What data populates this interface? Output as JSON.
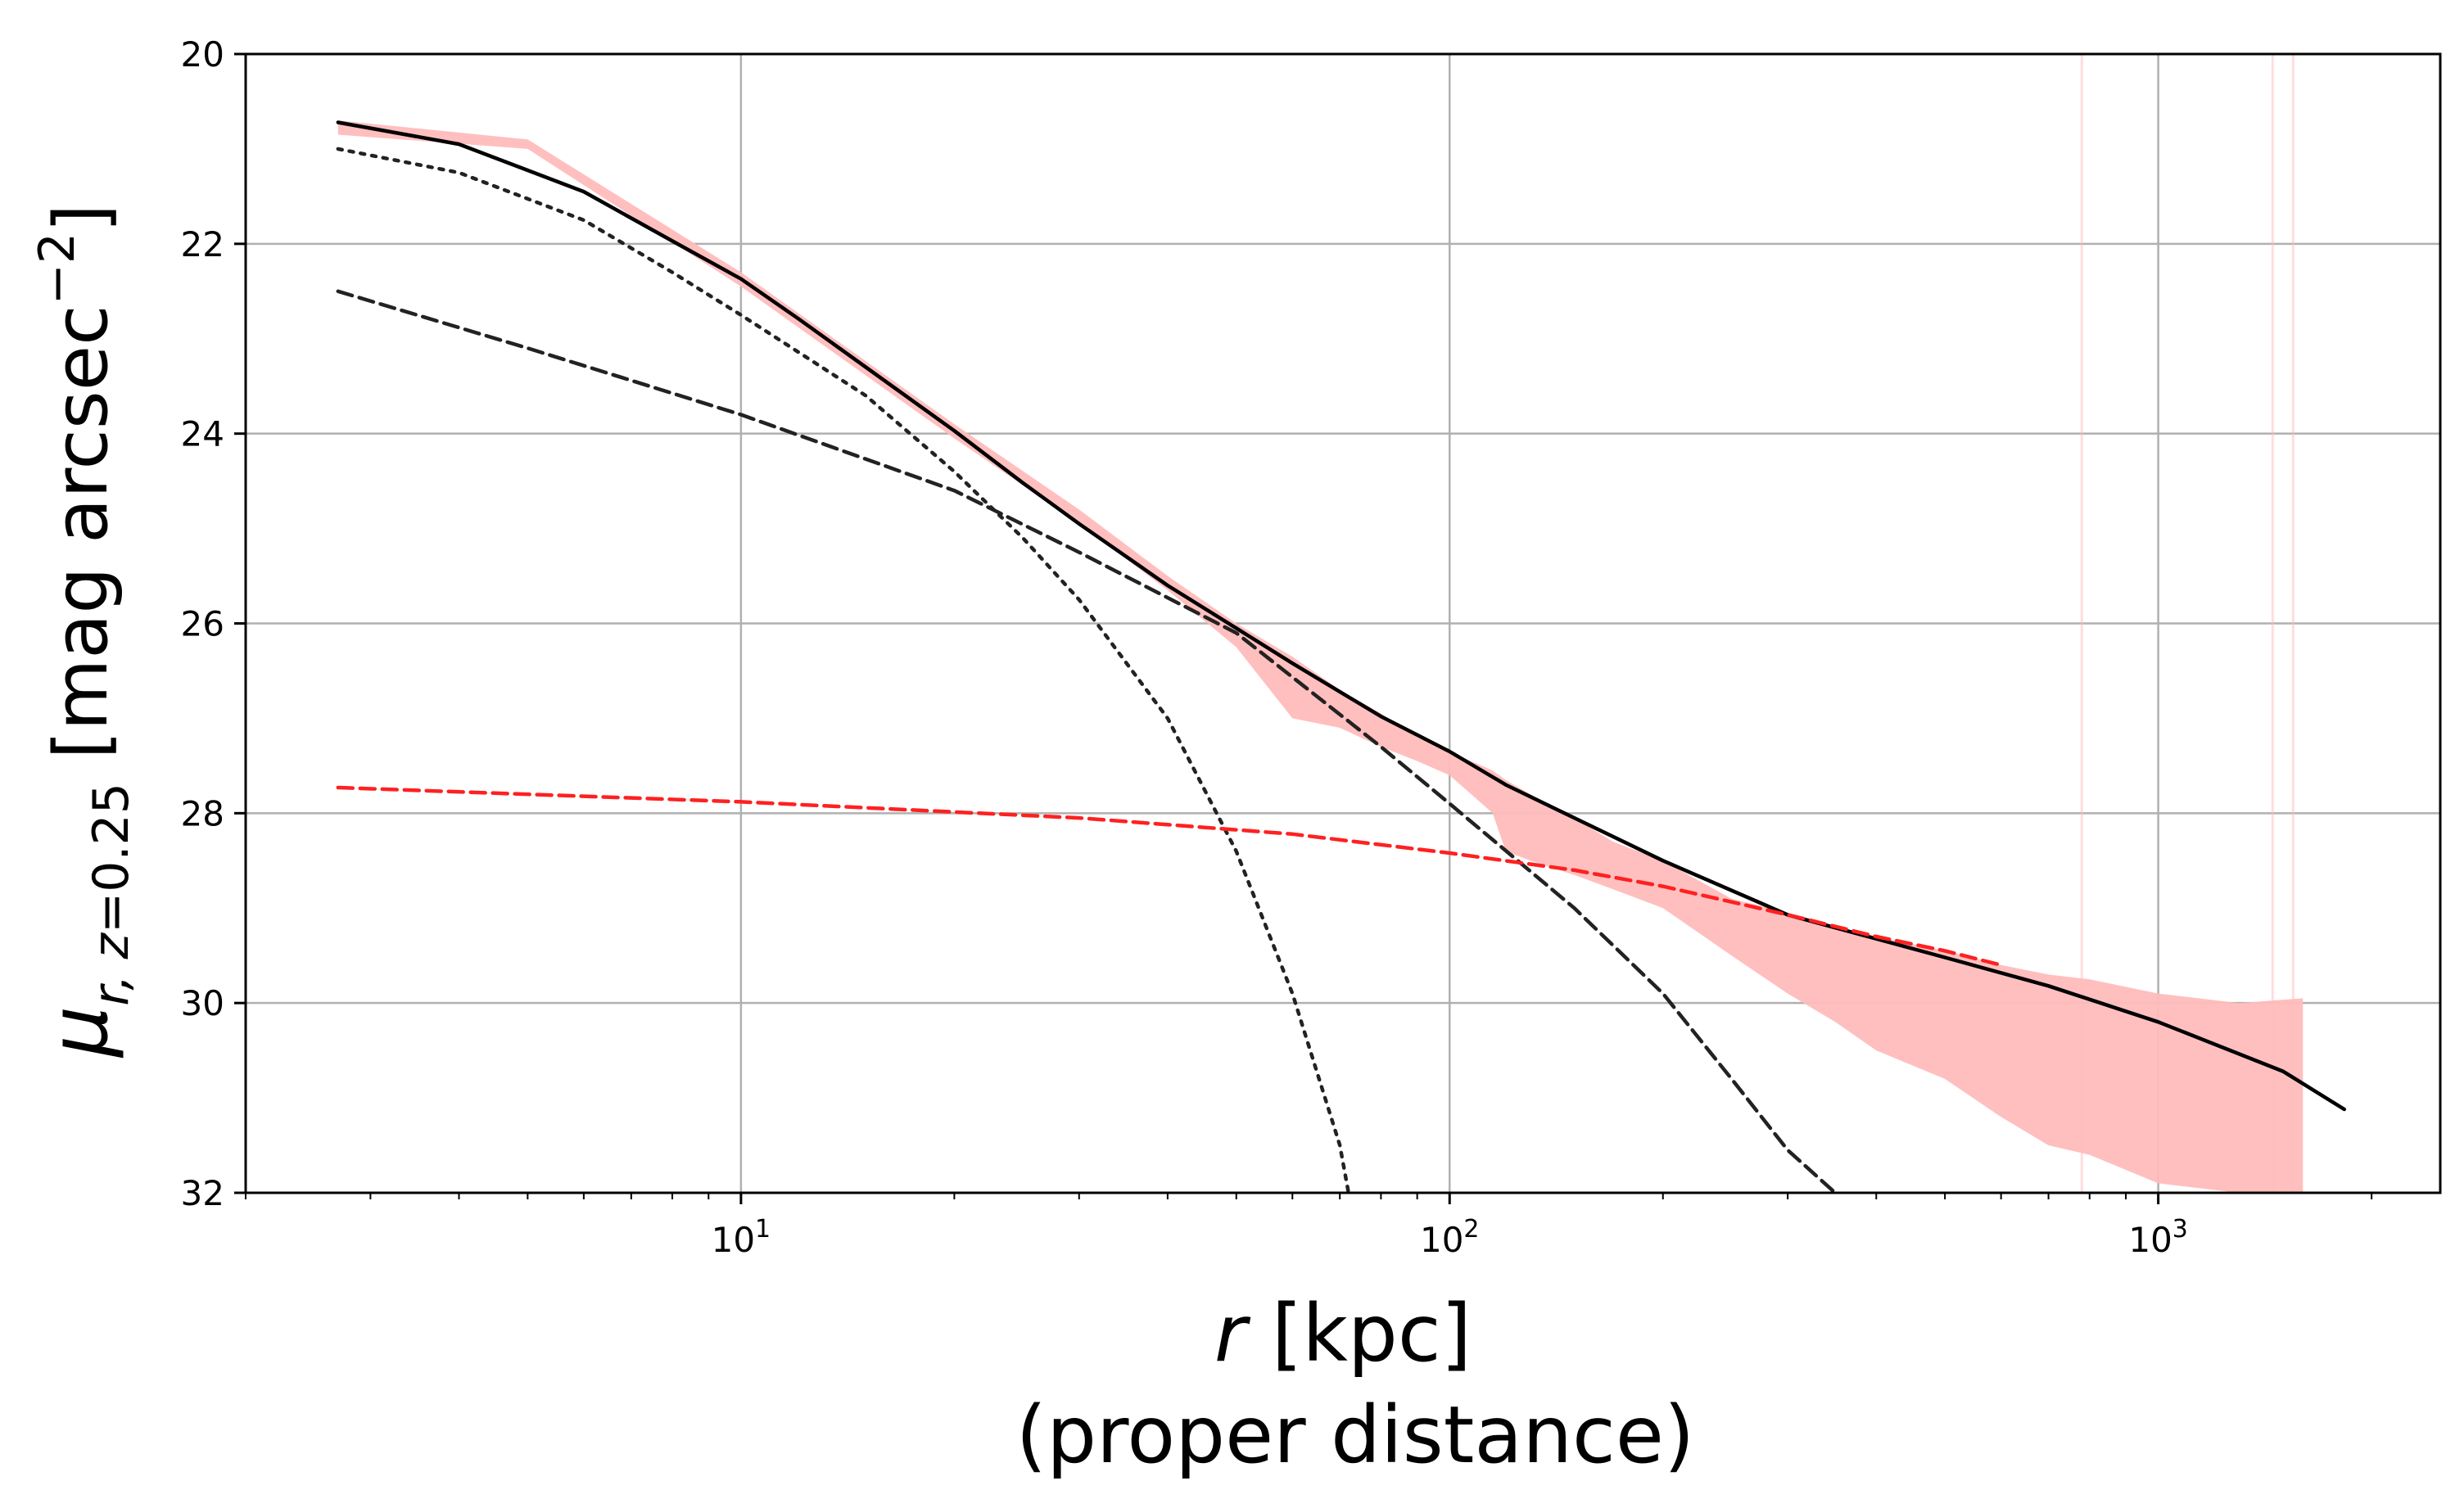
{
  "chart_data": {
    "type": "line",
    "xscale": "log",
    "xlim": [
      2.0,
      2500
    ],
    "ylim": [
      32,
      20
    ],
    "y_inverted": true,
    "grid": true,
    "xlabel_main": "r [kpc]",
    "xlabel_sub": "(proper distance)",
    "ylabel": "μ_{r, z=0.25} [mag arcsec^{-2}]",
    "xticks": [
      {
        "value": 10,
        "base": "10",
        "exp": "1"
      },
      {
        "value": 100,
        "base": "10",
        "exp": "2"
      },
      {
        "value": 1000,
        "base": "10",
        "exp": "3"
      }
    ],
    "yticks": [
      20,
      22,
      24,
      26,
      28,
      30,
      32
    ],
    "colors": {
      "total": "#000000",
      "inner": "#222222",
      "outer": "#222222",
      "icl": "#ff2020",
      "band": "#ffbcbc"
    },
    "series": [
      {
        "id": "total",
        "style": "solid",
        "x": [
          2.7,
          4,
          6,
          8,
          10,
          12,
          15,
          20,
          25,
          30,
          40,
          50,
          60,
          80,
          100,
          120,
          150,
          200,
          300,
          500,
          700,
          1000,
          1500,
          1830
        ],
        "y": [
          20.72,
          20.95,
          21.45,
          21.97,
          22.37,
          22.78,
          23.3,
          23.97,
          24.52,
          24.95,
          25.6,
          26.05,
          26.42,
          26.98,
          27.35,
          27.7,
          28.05,
          28.5,
          29.07,
          29.52,
          29.82,
          30.2,
          30.72,
          31.12
        ]
      },
      {
        "id": "inner",
        "style": "dotted",
        "x": [
          2.7,
          4,
          6,
          8,
          10,
          15,
          20,
          25,
          30,
          40,
          50,
          60,
          70,
          72
        ],
        "y": [
          21.0,
          21.25,
          21.75,
          22.3,
          22.75,
          23.6,
          24.4,
          25.1,
          25.75,
          27.0,
          28.4,
          29.9,
          31.5,
          32.0
        ]
      },
      {
        "id": "outer",
        "style": "dashed",
        "x": [
          2.7,
          5,
          10,
          20,
          30,
          50,
          80,
          100,
          150,
          200,
          250,
          300,
          350
        ],
        "y": [
          22.5,
          23.1,
          23.8,
          24.6,
          25.25,
          26.1,
          27.3,
          27.9,
          29.0,
          29.9,
          30.8,
          31.55,
          32.0
        ]
      },
      {
        "id": "icl",
        "style": "dashed",
        "x": [
          2.7,
          10,
          30,
          60,
          100,
          150,
          200,
          300,
          400,
          500,
          600
        ],
        "y": [
          27.73,
          27.88,
          28.05,
          28.22,
          28.42,
          28.6,
          28.77,
          29.07,
          29.3,
          29.45,
          29.6
        ]
      }
    ],
    "band": {
      "x": [
        2.7,
        5,
        10,
        20,
        30,
        40,
        50,
        60,
        70,
        80,
        90,
        100,
        115,
        120,
        130,
        150,
        170,
        200,
        250,
        300,
        350,
        400,
        500,
        600,
        700,
        800,
        1000,
        1300,
        1600
      ],
      "y_upper": [
        20.7,
        20.9,
        22.3,
        23.9,
        24.8,
        25.5,
        26.0,
        26.35,
        26.7,
        26.95,
        27.2,
        27.35,
        27.55,
        27.65,
        27.8,
        28.05,
        28.3,
        28.5,
        28.9,
        29.05,
        29.2,
        29.3,
        29.45,
        29.6,
        29.7,
        29.75,
        29.9,
        30.0,
        29.95
      ],
      "y_lower": [
        20.85,
        21.0,
        22.45,
        24.05,
        24.95,
        25.65,
        26.25,
        27.0,
        27.1,
        27.3,
        27.45,
        27.6,
        28.0,
        28.4,
        28.5,
        28.65,
        28.8,
        29.0,
        29.5,
        29.9,
        30.2,
        30.5,
        30.8,
        31.2,
        31.5,
        31.6,
        31.9,
        32.0,
        32.0
      ]
    },
    "band_spikes_x": [
      780,
      1450,
      1550
    ]
  }
}
